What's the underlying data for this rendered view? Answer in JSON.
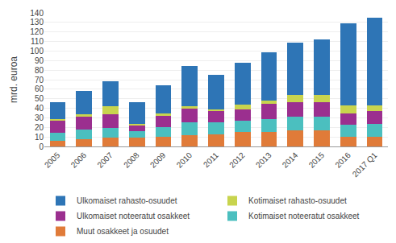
{
  "chart_data": {
    "type": "bar",
    "stacked": true,
    "categories": [
      "2005",
      "2006",
      "2007",
      "2008",
      "2009",
      "2010",
      "2011",
      "2012",
      "2013",
      "2014",
      "2015",
      "2016",
      "2017 Q1"
    ],
    "series": [
      {
        "name": "Muut osakkeet ja osuudet",
        "color": "#e07b39",
        "values": [
          6,
          8,
          9,
          9,
          10,
          12,
          13,
          15,
          15,
          17,
          17,
          10,
          10
        ]
      },
      {
        "name": "Kotimaiset noteeratut osakkeet",
        "color": "#4bbfbf",
        "values": [
          8,
          10,
          10,
          7,
          10,
          13,
          12,
          12,
          14,
          14,
          14,
          13,
          14
        ]
      },
      {
        "name": "Ulkomaiset noteeratut osakkeet",
        "color": "#9b2f8f",
        "values": [
          13,
          13,
          15,
          6,
          12,
          15,
          12,
          12,
          16,
          15,
          15,
          12,
          13
        ]
      },
      {
        "name": "Kotimaiset rahasto-osuudet",
        "color": "#c8d44e",
        "values": [
          2,
          3,
          8,
          2,
          3,
          2,
          2,
          5,
          3,
          8,
          8,
          8,
          6
        ]
      },
      {
        "name": "Ulkomaiset rahasto-osuudet",
        "color": "#2e75b6",
        "values": [
          17,
          24,
          26,
          22,
          29,
          42,
          36,
          44,
          51,
          55,
          58,
          86,
          92
        ]
      }
    ],
    "ylabel": "mrd. euroa",
    "ylim": [
      0,
      140
    ],
    "yticks": [
      0,
      10,
      20,
      30,
      40,
      50,
      60,
      70,
      80,
      90,
      100,
      110,
      120,
      130,
      140
    ],
    "grid": true,
    "legend": "bottom"
  }
}
